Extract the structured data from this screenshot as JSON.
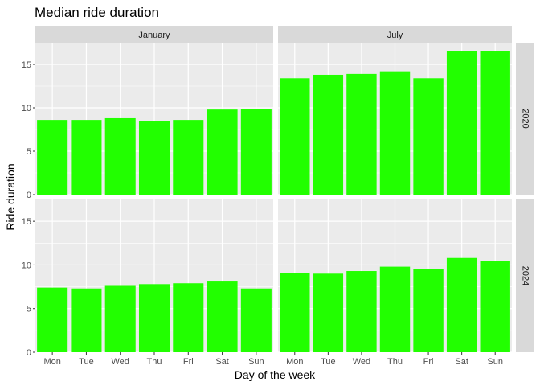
{
  "chart_data": {
    "type": "bar",
    "title": "Median ride duration",
    "xlabel": "Day of the week",
    "ylabel": "Ride duration",
    "categories": [
      "Mon",
      "Tue",
      "Wed",
      "Thu",
      "Fri",
      "Sat",
      "Sun"
    ],
    "ylim": [
      0,
      17.5
    ],
    "yticks": [
      0,
      5,
      10,
      15
    ],
    "grid": true,
    "bar_color": "#22FF00",
    "facet_columns": [
      "January",
      "July"
    ],
    "facet_rows": [
      "2020",
      "2024"
    ],
    "panels": [
      {
        "month": "January",
        "year": "2020",
        "values": [
          8.6,
          8.6,
          8.8,
          8.5,
          8.6,
          9.8,
          9.9
        ]
      },
      {
        "month": "July",
        "year": "2020",
        "values": [
          13.4,
          13.8,
          13.9,
          14.2,
          13.4,
          16.5,
          16.5
        ]
      },
      {
        "month": "January",
        "year": "2024",
        "values": [
          7.4,
          7.3,
          7.6,
          7.8,
          7.9,
          8.1,
          7.3
        ]
      },
      {
        "month": "July",
        "year": "2024",
        "values": [
          9.1,
          9.0,
          9.3,
          9.8,
          9.5,
          10.8,
          10.5
        ]
      }
    ]
  }
}
